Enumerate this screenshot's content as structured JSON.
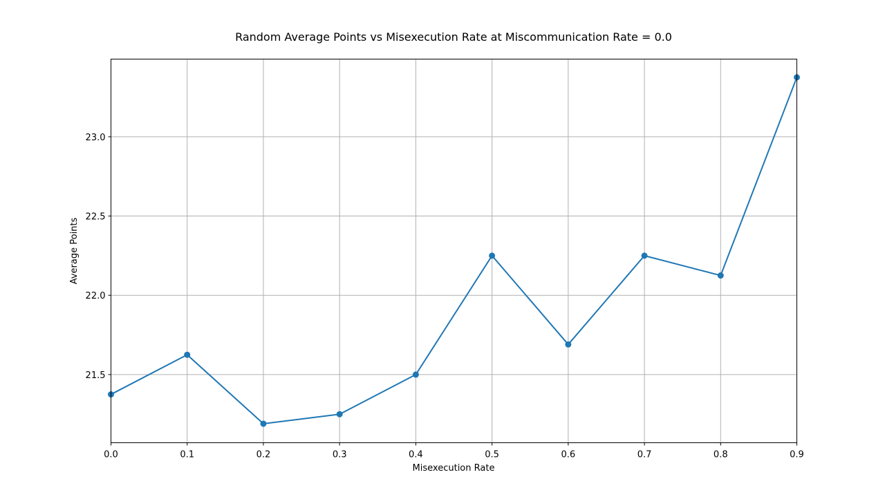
{
  "chart_data": {
    "type": "line",
    "title": "Random Average Points vs Misexecution Rate at Miscommunication Rate = 0.0",
    "xlabel": "Misexecution Rate",
    "ylabel": "Average Points",
    "x": [
      0.0,
      0.1,
      0.2,
      0.3,
      0.4,
      0.5,
      0.6,
      0.7,
      0.8,
      0.9
    ],
    "series": [
      {
        "values": [
          21.375,
          21.625,
          21.19,
          21.25,
          21.5,
          22.25,
          21.69,
          22.25,
          22.125,
          23.375
        ],
        "color": "#1f77b4",
        "marker": "circle"
      }
    ],
    "xlim": [
      0.0,
      0.9
    ],
    "ylim": [
      21.07,
      23.49
    ],
    "xticks": [
      "0.0",
      "0.1",
      "0.2",
      "0.3",
      "0.4",
      "0.5",
      "0.6",
      "0.7",
      "0.8",
      "0.9"
    ],
    "xtick_values": [
      0.0,
      0.1,
      0.2,
      0.3,
      0.4,
      0.5,
      0.6,
      0.7,
      0.8,
      0.9
    ],
    "yticks": [
      "21.5",
      "22.0",
      "22.5",
      "23.0"
    ],
    "ytick_values": [
      21.5,
      22.0,
      22.5,
      23.0
    ],
    "grid": true
  }
}
